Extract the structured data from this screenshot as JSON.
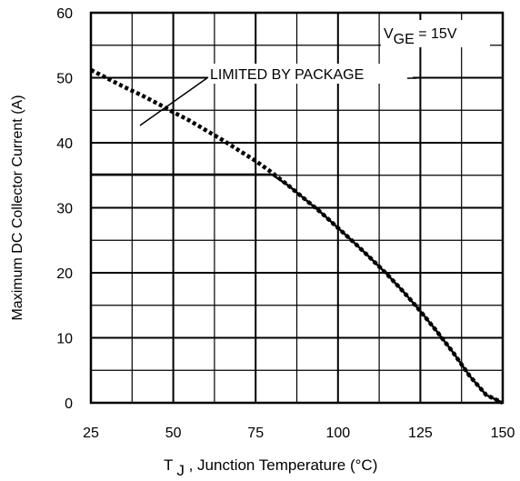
{
  "chart_data": {
    "type": "line",
    "title": "",
    "xlabel": {
      "main": "T",
      "sub": "J",
      "rest": ", Junction Temperature (°C)"
    },
    "ylabel": "Maximum DC Collector Current (A)",
    "xlim": [
      25,
      150
    ],
    "ylim": [
      0,
      60
    ],
    "xticks": [
      25,
      50,
      75,
      100,
      125,
      150
    ],
    "yticks": [
      0,
      10,
      20,
      30,
      40,
      50,
      60
    ],
    "x_minor_step": 12.5,
    "y_minor_step": 5,
    "grid": true,
    "annotations": {
      "condition": {
        "main": "V",
        "sub": "GE",
        "rest": " = 15V",
        "placement": "top-right"
      },
      "limited_label": "LIMITED BY PACKAGE"
    },
    "series": [
      {
        "style": "dotted",
        "x": [
          25,
          30,
          35,
          40,
          45,
          50,
          55,
          60,
          65,
          70,
          75,
          80,
          85,
          90,
          95,
          100,
          105,
          110,
          115,
          120,
          125,
          130,
          135,
          140,
          145,
          150
        ],
        "y": [
          51.2,
          49.9,
          48.6,
          47.4,
          46.1,
          44.7,
          43.4,
          41.9,
          40.4,
          38.8,
          37.2,
          35.4,
          33.4,
          31.3,
          29.2,
          26.9,
          24.6,
          22.2,
          19.7,
          17.0,
          14.1,
          11.0,
          7.7,
          4.1,
          1.2,
          0
        ]
      },
      {
        "style": "solid",
        "x": [
          25,
          60,
          80,
          85,
          90,
          95,
          100,
          105,
          110,
          115,
          120,
          125,
          130,
          135,
          140,
          145,
          150
        ],
        "y": [
          35.1,
          35.1,
          35.1,
          33.4,
          31.3,
          29.2,
          26.9,
          24.6,
          22.2,
          19.7,
          17.0,
          14.1,
          11.0,
          7.7,
          4.1,
          1.2,
          0
        ]
      }
    ]
  }
}
